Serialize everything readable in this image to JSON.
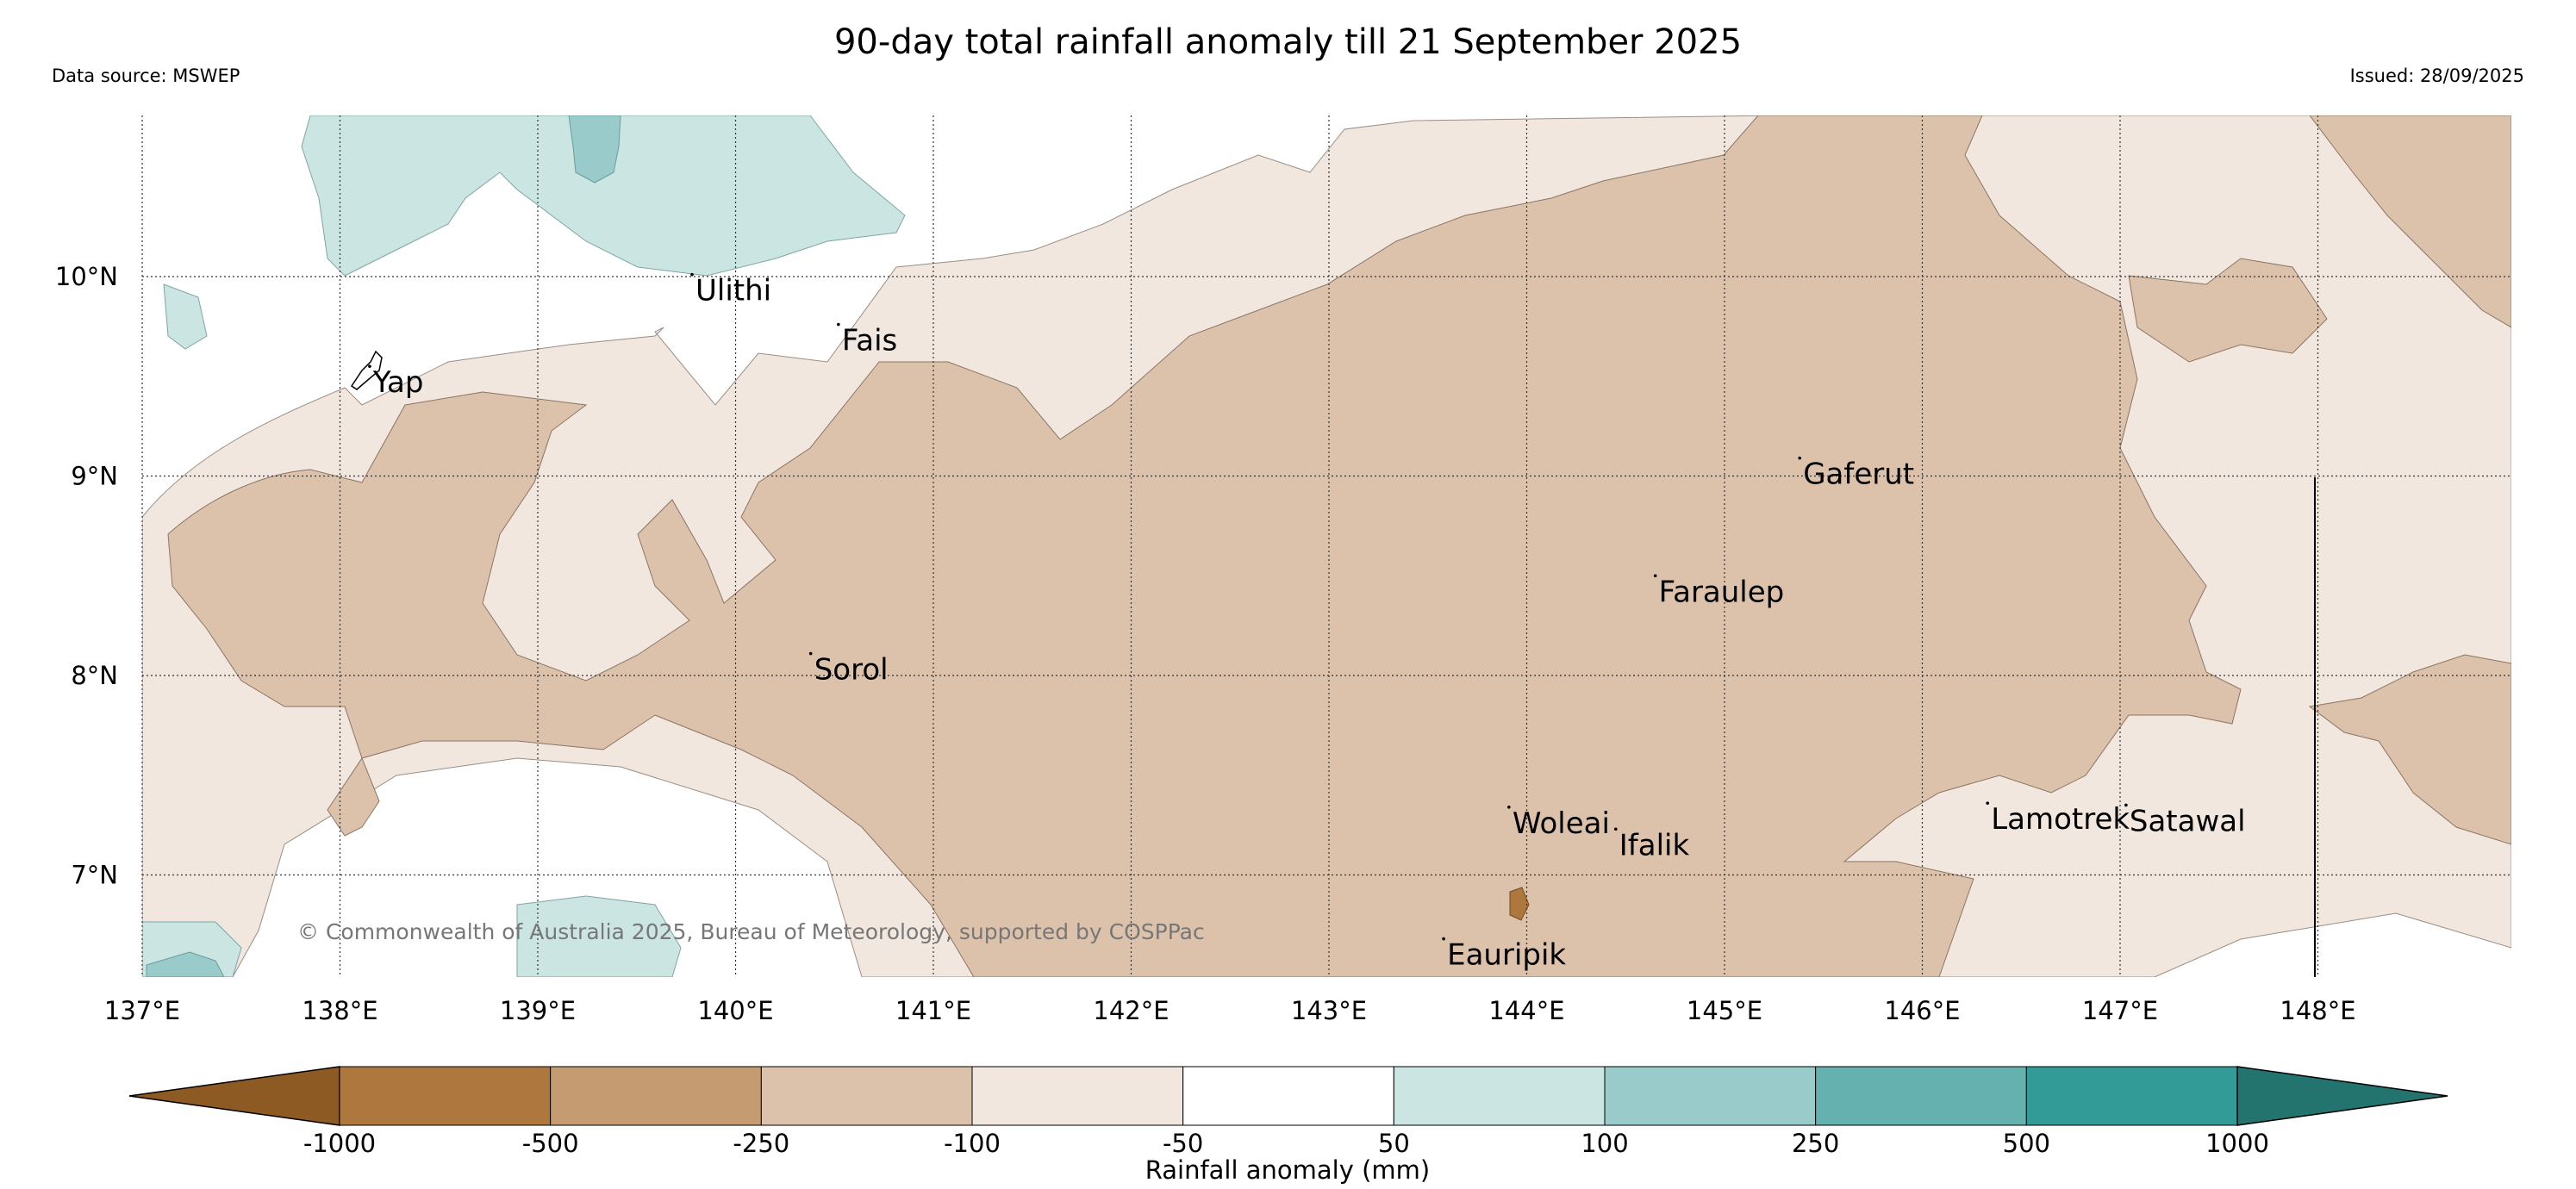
{
  "title": "90-day total rainfall anomaly till 21 September 2025",
  "data_source": "Data source: MSWEP",
  "issued": "Issued: 28/09/2025",
  "copyright": "© Commonwealth of Australia 2025, Bureau of Meteorology, supported by COSPPac",
  "colors": {
    "dry_extreme": "#8e5a24",
    "dry_1000_500": "#ad773d",
    "dry_500_250": "#c59c72",
    "dry_250_100": "#dcc2aa",
    "dry_100_50": "#f1e7de",
    "neutral": "#ffffff",
    "wet_50_100": "#cbe5e3",
    "wet_100_250": "#98cbc9",
    "wet_250_500": "#64b1b0",
    "wet_500_1000": "#329b97",
    "wet_extreme": "#23736f"
  },
  "map": {
    "longitudes": [
      "137°E",
      "138°E",
      "139°E",
      "140°E",
      "141°E",
      "142°E",
      "143°E",
      "144°E",
      "145°E",
      "146°E",
      "147°E",
      "148°E"
    ],
    "latitudes": [
      "10°N",
      "9°N",
      "8°N",
      "7°N"
    ],
    "islands": [
      {
        "name": "Ulithi",
        "lon": 139.78,
        "lat": 10.01
      },
      {
        "name": "Fais",
        "lon": 140.52,
        "lat": 9.76
      },
      {
        "name": "Yap",
        "lon": 138.15,
        "lat": 9.55
      },
      {
        "name": "Gaferut",
        "lon": 145.38,
        "lat": 9.09
      },
      {
        "name": "Faraulep",
        "lon": 144.65,
        "lat": 8.5
      },
      {
        "name": "Sorol",
        "lon": 140.38,
        "lat": 8.11
      },
      {
        "name": "Woleai",
        "lon": 143.91,
        "lat": 7.34
      },
      {
        "name": "Ifalik",
        "lon": 144.45,
        "lat": 7.23
      },
      {
        "name": "Lamotrek",
        "lon": 146.33,
        "lat": 7.36
      },
      {
        "name": "Satawal",
        "lon": 147.03,
        "lat": 7.35
      },
      {
        "name": "Eauripik",
        "lon": 143.58,
        "lat": 6.68
      }
    ]
  },
  "colorbar": {
    "ticks": [
      "-1000",
      "-500",
      "-250",
      "-100",
      "-50",
      "50",
      "100",
      "250",
      "500",
      "1000"
    ],
    "label": "Rainfall anomaly (mm)"
  }
}
